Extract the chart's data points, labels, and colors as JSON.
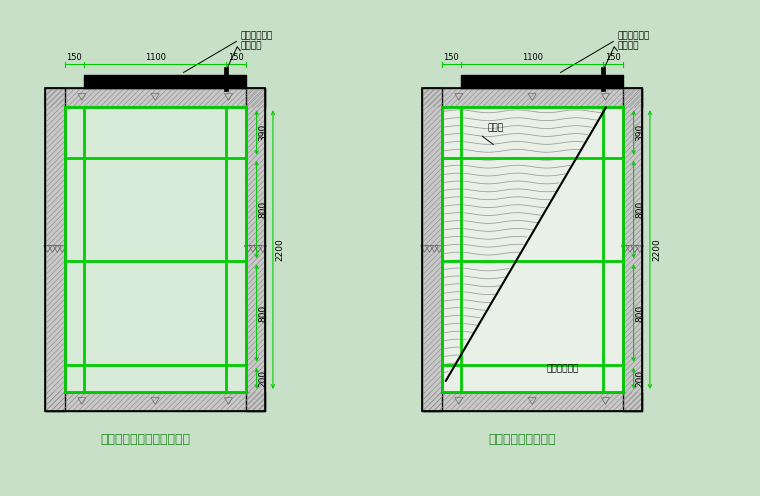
{
  "bg_color": "#c8e0c8",
  "wall_fill_color": "#c8c8c8",
  "wall_hatch_color": "#888888",
  "inner_fill_color": "#d8ead8",
  "inner_fill_color2": "#e8f0e8",
  "green_color": "#00cc00",
  "black_color": "#000000",
  "title1": "水平防护钢管架平面示意图",
  "title2": "水平防护平面示意图",
  "label_men": "工具式防护门",
  "label_guan": "限位钢管",
  "label_wang": "安全网",
  "label_mban": "模板硬质封闭",
  "dim_150": "150",
  "dim_1100": "1100",
  "dim_390": "390",
  "dim_800": "800",
  "dim_200": "200",
  "dim_2200": "2200",
  "note_lw": 0.7,
  "pipe_lw": 2.0,
  "wall_lw": 1.0
}
